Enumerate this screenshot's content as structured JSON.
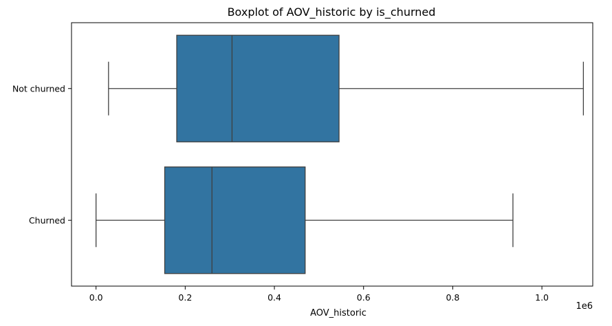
{
  "chart_data": {
    "type": "boxplot",
    "orientation": "horizontal",
    "title": "Boxplot of AOV_historic by is_churned",
    "xlabel": "AOV_historic",
    "ylabel": "",
    "x_scale_label": "1e6",
    "xlim": [
      -0.055,
      1.114
    ],
    "x_ticks": [
      0.0,
      0.2,
      0.4,
      0.6,
      0.8,
      1.0
    ],
    "x_tick_labels": [
      "0.0",
      "0.2",
      "0.4",
      "0.6",
      "0.8",
      "1.0"
    ],
    "grid": false,
    "legend": "none",
    "color": "#3274a1",
    "edge_color": "#3f3f3f",
    "categories": [
      "Not churned",
      "Churned"
    ],
    "boxes": [
      {
        "category": "Not churned",
        "whisker_low": 0.028,
        "q1": 0.181,
        "median": 0.305,
        "q3": 0.545,
        "whisker_high": 1.093
      },
      {
        "category": "Churned",
        "whisker_low": 0.0,
        "q1": 0.154,
        "median": 0.26,
        "q3": 0.469,
        "whisker_high": 0.935
      }
    ]
  }
}
